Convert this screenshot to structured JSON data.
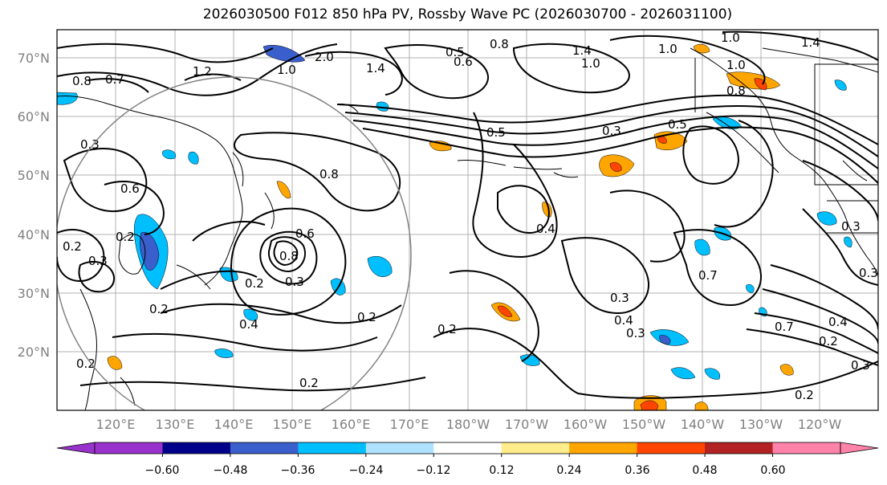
{
  "title": "2026030500 F012 850 hPa PV, Rossby Wave PC (2026030700 - 2026031100)",
  "lat_labels": [
    "70°N",
    "60°N",
    "50°N",
    "40°N",
    "30°N",
    "20°N"
  ],
  "lon_labels": [
    "120°E",
    "130°E",
    "140°E",
    "150°E",
    "160°E",
    "170°E",
    "180°W",
    "170°W",
    "160°W",
    "150°W",
    "140°W",
    "130°W",
    "120°W"
  ],
  "colorbar": {
    "ticks": [
      "−0.60",
      "−0.48",
      "−0.36",
      "−0.24",
      "−0.12",
      "0.12",
      "0.24",
      "0.36",
      "0.48",
      "0.60"
    ],
    "colors": [
      "#9932cc",
      "#00008b",
      "#3a5fcd",
      "#00bfff",
      "#b0e2ff",
      "#ffffff",
      "#ffec8b",
      "#ffa500",
      "#ff4500",
      "#b22222",
      "#ff82ab"
    ]
  },
  "contour_labels": [
    "0.8",
    "0.7",
    "1.2",
    "2.0",
    "1.0",
    "1.4",
    "0.5",
    "0.6",
    "0.8",
    "1.4",
    "1.0",
    "1.0",
    "0.8",
    "1.0",
    "1.4",
    "1.0",
    "0.3",
    "0.3",
    "0.5",
    "0.5",
    "0.8",
    "0.4",
    "0.4",
    "0.3",
    "0.2",
    "0.3",
    "0.6",
    "0.8",
    "0.2",
    "0.3",
    "0.2",
    "0.4",
    "0.2",
    "0.2",
    "0.2",
    "0.2",
    "0.4",
    "0.3",
    "0.7",
    "0.3",
    "0.7",
    "0.2",
    "0.3",
    "0.2",
    "0.6",
    "0.2",
    "0.3"
  ]
}
